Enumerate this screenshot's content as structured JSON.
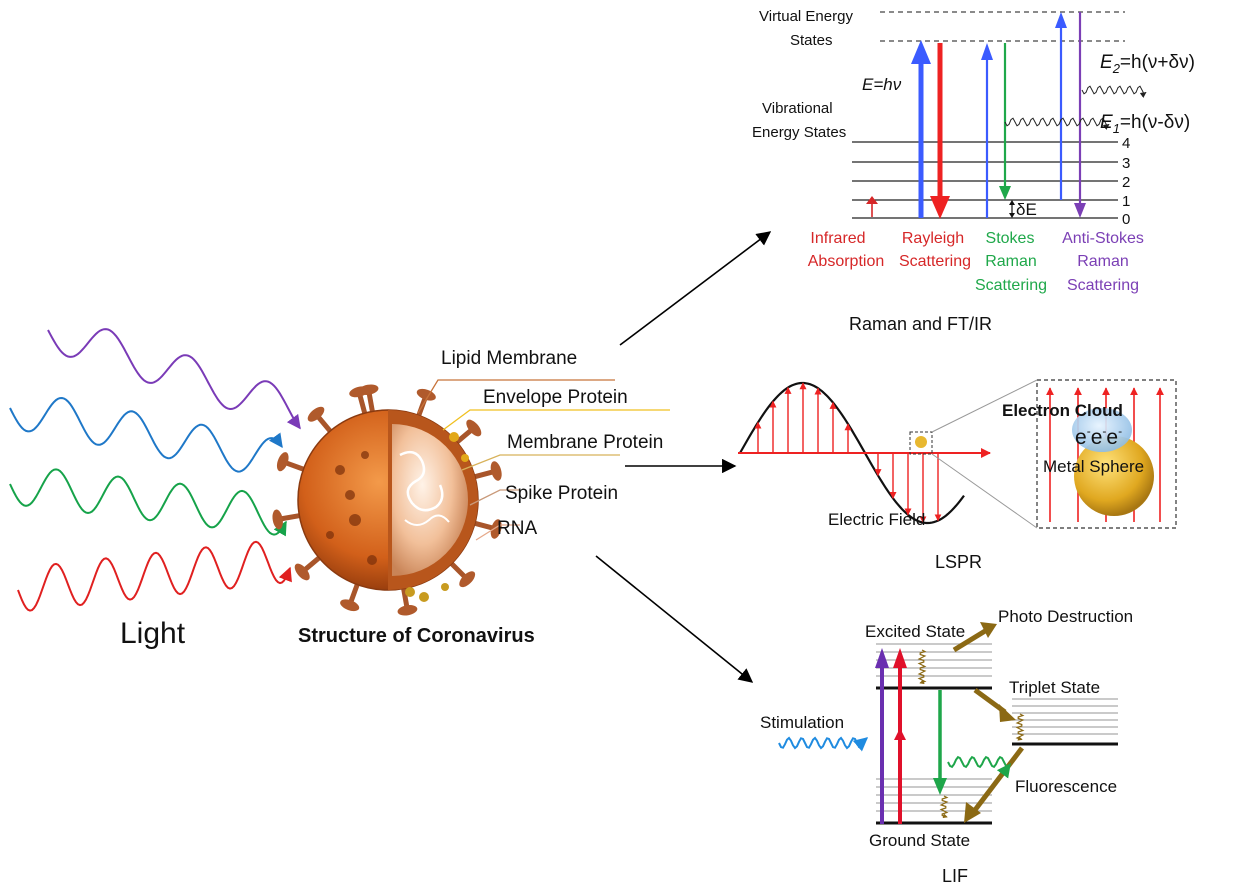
{
  "light": {
    "label": "Light",
    "wave_colors": {
      "violet": "#7a3bb7",
      "blue": "#1f78c8",
      "green": "#16a34a",
      "red": "#e02020"
    }
  },
  "virus": {
    "caption": "Structure of Coronavirus",
    "labels": {
      "lipid_membrane": "Lipid Membrane",
      "envelope_protein": "Envelope Protein",
      "membrane_protein": "Membrane Protein",
      "spike_protein": "Spike Protein",
      "rna": "RNA"
    },
    "colors": {
      "shell": "#d9691f",
      "core": "#f3c8a6",
      "spike": "#a8552a"
    }
  },
  "raman": {
    "caption": "Raman and FT/IR",
    "virtual_states_label": [
      "Virtual Energy",
      "States"
    ],
    "vibrational_states_label": [
      "Vibrational",
      "Energy States"
    ],
    "energy_eq": "E=hν",
    "e2": {
      "sym": "E",
      "sub": "2",
      "rest": "=h(ν+δν)"
    },
    "e1": {
      "sym": "E",
      "sub": "1",
      "rest": "=h(ν-δν)"
    },
    "delta_e": "δE",
    "levels": [
      "4",
      "3",
      "2",
      "1",
      "0"
    ],
    "processes": {
      "infrared": [
        "Infrared",
        "Absorption"
      ],
      "rayleigh": [
        "Rayleigh",
        "Scattering"
      ],
      "stokes": [
        "Stokes",
        "Raman",
        "Scattering"
      ],
      "anti_stokes": [
        "Anti-Stokes",
        "Raman",
        "Scattering"
      ]
    },
    "colors": {
      "infrared": "#d62728",
      "rayleigh": "#d62728",
      "stokes": "#1fa84a",
      "anti_stokes": "#7b3fb5",
      "excite": "#3b5bff"
    }
  },
  "lspr": {
    "caption": "LSPR",
    "electric_field_label": "Electric Field",
    "electron_cloud_label": "Electron Cloud",
    "electrons_label": "e-e-e-",
    "metal_sphere_label": "Metal Sphere",
    "colors": {
      "field": "#ee2222",
      "sphere": "#e8b830",
      "cloud": "#a9cde8"
    }
  },
  "lif": {
    "caption": "LIF",
    "excited_state": "Excited State",
    "ground_state": "Ground State",
    "triplet_state": "Triplet State",
    "photo_destruction": "Photo Destruction",
    "fluorescence": "Fluorescence",
    "stimulation": "Stimulation",
    "colors": {
      "brown": "#8b6914",
      "violet": "#6a2fb0",
      "red": "#e0102a",
      "green": "#1ea64a",
      "blue": "#1f8be0"
    }
  }
}
